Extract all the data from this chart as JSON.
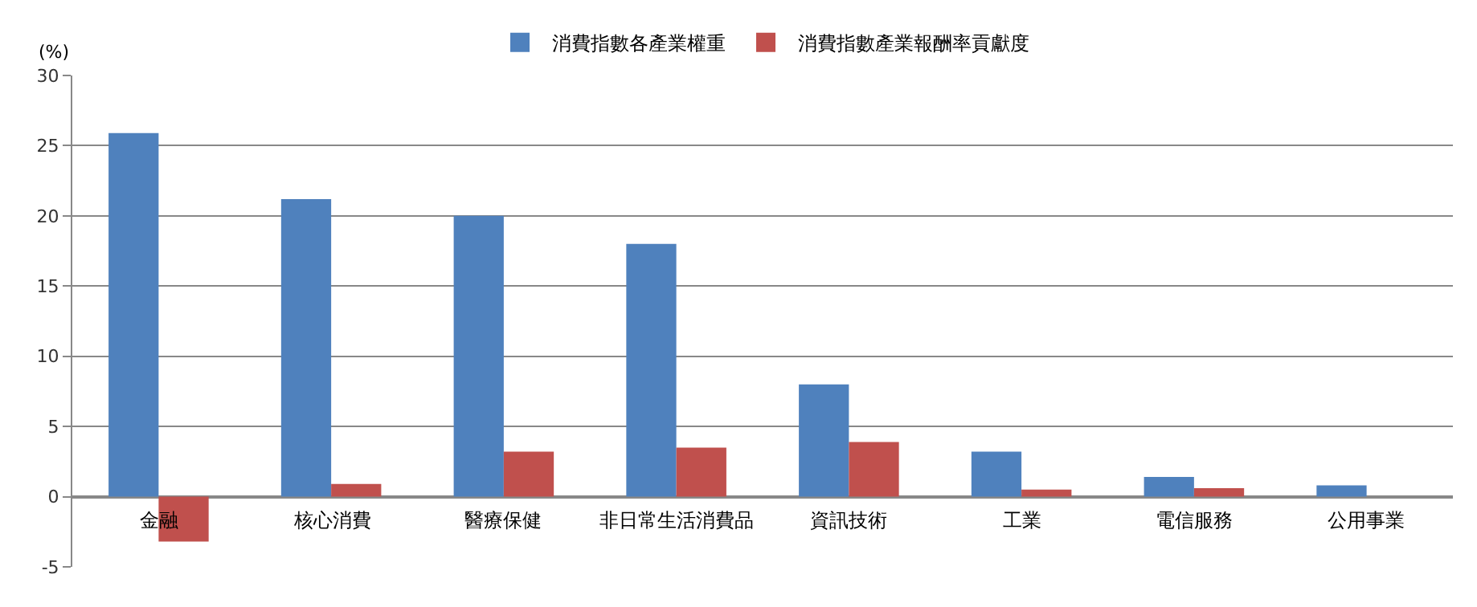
{
  "chart_data": {
    "type": "bar",
    "ylabel": "(%)",
    "categories": [
      "金融",
      "核心消費",
      "醫療保健",
      "非日常生活消費品",
      "資訊技術",
      "工業",
      "電信服務",
      "公用事業"
    ],
    "series": [
      {
        "name": "消費指數各產業權重",
        "color": "#4f81bd",
        "values": [
          25.9,
          21.2,
          20,
          18,
          8,
          3.2,
          1.4,
          0.8
        ]
      },
      {
        "name": "消費指數產業報酬率貢獻度",
        "color": "#c0504d",
        "values": [
          -3.2,
          0.9,
          3.2,
          3.5,
          3.9,
          0.5,
          0.6,
          null
        ]
      }
    ],
    "ylim": [
      -5,
      30
    ],
    "yticks": [
      -5,
      0,
      5,
      10,
      15,
      20,
      25,
      30
    ],
    "grid": "y",
    "legend": "top"
  }
}
